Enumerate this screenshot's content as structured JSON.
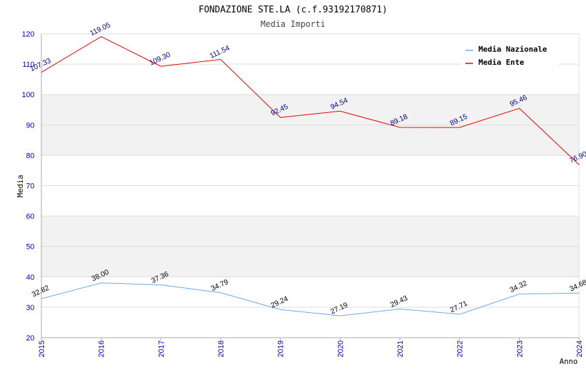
{
  "chart_data": {
    "type": "line",
    "title": "FONDAZIONE STE.LA (c.f.93192170871)",
    "subtitle": "Media Importi",
    "xlabel": "Anno",
    "ylabel": "Media",
    "ylim": [
      20,
      120
    ],
    "yticks": [
      "20",
      "30",
      "40",
      "50",
      "60",
      "70",
      "80",
      "90",
      "100",
      "110",
      "120"
    ],
    "x": [
      "2015",
      "2016",
      "2017",
      "2018",
      "2019",
      "2020",
      "2021",
      "2022",
      "2023",
      "2024"
    ],
    "grid": true,
    "legend_position": "top-right",
    "series": [
      {
        "name": "Media Nazionale",
        "color": "#66aaee",
        "label_color": "#000000",
        "values": [
          32.82,
          38.0,
          37.36,
          34.79,
          29.24,
          27.19,
          29.43,
          27.71,
          34.32,
          34.68
        ],
        "labels": [
          "32.82",
          "38.00",
          "37.36",
          "34.79",
          "29.24",
          "27.19",
          "29.43",
          "27.71",
          "34.32",
          "34.68"
        ]
      },
      {
        "name": "Media Ente",
        "color": "#dd0000",
        "label_color": "#000088",
        "values": [
          107.33,
          119.05,
          109.3,
          111.54,
          92.45,
          94.54,
          89.18,
          89.15,
          95.46,
          76.9
        ],
        "labels": [
          "107.33",
          "119.05",
          "109.30",
          "111.54",
          "92.45",
          "94.54",
          "89.18",
          "89.15",
          "95.46",
          "76.90"
        ]
      }
    ]
  }
}
